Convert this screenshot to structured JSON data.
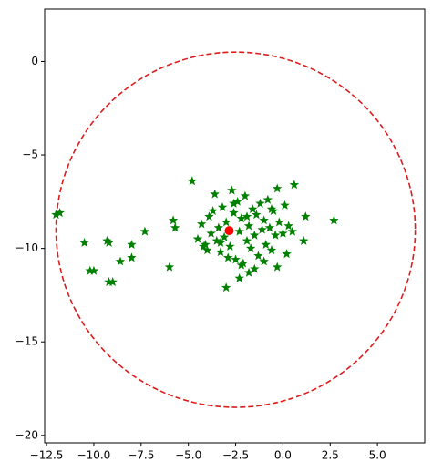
{
  "chart_data": {
    "type": "scatter",
    "xlim": [
      -12.6,
      7.5
    ],
    "ylim": [
      -20.4,
      2.8
    ],
    "xticks": [
      {
        "value": -12.5,
        "label": "−12.5"
      },
      {
        "value": -10,
        "label": "−10.0"
      },
      {
        "value": -7.5,
        "label": "−7.5"
      },
      {
        "value": -5,
        "label": "−5.0"
      },
      {
        "value": -2.5,
        "label": "−2.5"
      },
      {
        "value": 0,
        "label": "0.0"
      },
      2.5,
      {
        "value": 5,
        "label": "5.0"
      }
    ],
    "yticks": [
      0,
      {
        "value": -5,
        "label": "−5"
      },
      {
        "value": -10,
        "label": "−10"
      },
      {
        "value": -15,
        "label": "−15"
      },
      {
        "value": -20,
        "label": "−20"
      }
    ],
    "series": [
      {
        "marker": "star",
        "color": "#008000",
        "x": [
          -12,
          -11.8,
          -10.5,
          -10.2,
          -10,
          -9.3,
          -9.2,
          -9.2,
          -9,
          -8.6,
          -8,
          -8,
          -7.3,
          -6,
          -5.8,
          -5.7,
          -4.8,
          -3,
          -2.3,
          0.6,
          1.2,
          1.1,
          2.7,
          -0.3,
          0.2,
          -1.8,
          -4.5,
          -4.3,
          -4.1,
          -4,
          -3.9,
          -3.8,
          -3.6,
          -3.5,
          -3.4,
          -3.3,
          -3.2,
          -3.1,
          -3,
          -2.9,
          -2.8,
          -2.7,
          -2.6,
          -2.5,
          -2.4,
          -2.3,
          -2.2,
          -2.1,
          -2,
          -1.9,
          -1.8,
          -1.7,
          -1.6,
          -1.5,
          -1.4,
          -1.3,
          -1.2,
          -1.1,
          -1,
          -0.9,
          -0.8,
          -0.7,
          -0.6,
          -0.5,
          -0.4,
          -0.3,
          -0.2,
          0,
          0.1,
          0.3,
          0.5,
          -1.5,
          -2.2,
          -3.7,
          -4.2,
          -1,
          -0.6,
          -2.6,
          -3.3,
          -1.9
        ],
        "values": [
          -8.2,
          -8.1,
          -9.7,
          -11.2,
          -11.2,
          -9.6,
          -9.7,
          -11.8,
          -11.8,
          -10.7,
          -9.8,
          -10.5,
          -9.1,
          -11,
          -8.5,
          -8.9,
          -6.4,
          -12.1,
          -11.6,
          -6.6,
          -8.3,
          -9.6,
          -8.5,
          -11,
          -10.3,
          -11.3,
          -9.5,
          -8.7,
          -9.8,
          -10.1,
          -8.3,
          -9.2,
          -7.1,
          -9.6,
          -8.9,
          -10.2,
          -7.8,
          -9.4,
          -8.6,
          -10.5,
          -9.9,
          -6.9,
          -8.1,
          -10.6,
          -7.5,
          -9.1,
          -8.4,
          -10.8,
          -7.2,
          -9.6,
          -8.8,
          -10,
          -7.9,
          -9.3,
          -8.2,
          -10.4,
          -7.6,
          -9,
          -8.5,
          -9.8,
          -7.4,
          -8.9,
          -10.1,
          -8,
          -9.3,
          -6.8,
          -8.6,
          -9.2,
          -7.7,
          -8.8,
          -9.1,
          -11.1,
          -10.9,
          -8,
          -9.9,
          -10.7,
          -7.9,
          -7.6,
          -9.7,
          -8.3
        ]
      },
      {
        "marker": "circle",
        "color": "#ff0000",
        "x": [
          -2.84
        ],
        "values": [
          -9.05
        ]
      }
    ],
    "circle": {
      "cx": -2.5,
      "cy": -9,
      "r": 9.5,
      "color": "#dd1c1c",
      "linestyle": "dashed"
    }
  }
}
